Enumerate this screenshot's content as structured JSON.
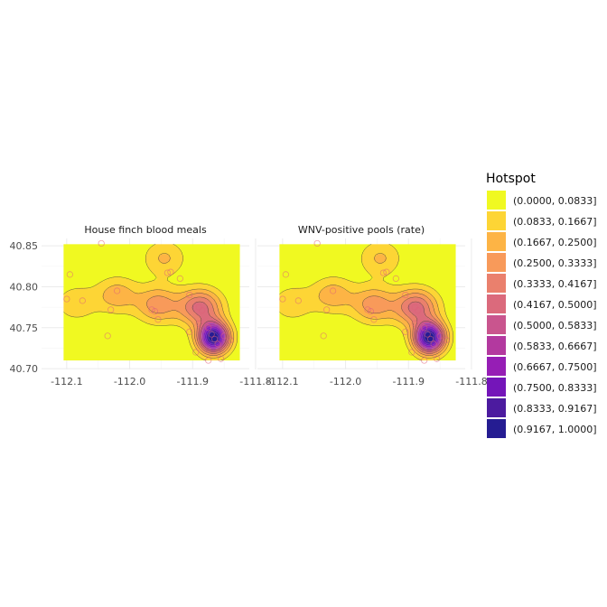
{
  "chart_data": {
    "type": "heatmap",
    "subtype": "faceted-density-contour-map",
    "facets": [
      {
        "title": "House finch blood meals"
      },
      {
        "title": "WNV-positive pools (rate)"
      }
    ],
    "x_ticks": [
      -112.1,
      -112.0,
      -111.9,
      -111.8
    ],
    "x_tick_labels": [
      "-112.1",
      "-112.0",
      "-111.9",
      "-111.8"
    ],
    "y_ticks": [
      40.7,
      40.75,
      40.8,
      40.85
    ],
    "y_tick_labels": [
      "40.70",
      "40.75",
      "40.80",
      "40.85"
    ],
    "xlim": [
      -112.14,
      -111.81
    ],
    "ylim": [
      40.699,
      40.859
    ],
    "tile_extent": {
      "x": [
        -112.105,
        -111.825
      ],
      "y": [
        40.71,
        40.852
      ]
    },
    "grid": true,
    "legend": {
      "title": "Hotspot",
      "position": "right",
      "bins": [
        {
          "label": "(0.0000, 0.0833]",
          "color": "#f0f921"
        },
        {
          "label": "(0.0833, 0.1667]",
          "color": "#fdd535"
        },
        {
          "label": "(0.1667, 0.2500]",
          "color": "#fdb445"
        },
        {
          "label": "(0.2500, 0.3333]",
          "color": "#f89a5a"
        },
        {
          "label": "(0.3333, 0.4167]",
          "color": "#ea806d"
        },
        {
          "label": "(0.4167, 0.5000]",
          "color": "#db6a7c"
        },
        {
          "label": "(0.5000, 0.5833]",
          "color": "#c9558e"
        },
        {
          "label": "(0.5833, 0.6667]",
          "color": "#b3399f"
        },
        {
          "label": "(0.6667, 0.7500]",
          "color": "#961eb5"
        },
        {
          "label": "(0.7500, 0.8333]",
          "color": "#7415b9"
        },
        {
          "label": "(0.8333, 0.9167]",
          "color": "#4c1b9f"
        },
        {
          "label": "(0.9167, 1.0000]",
          "color": "#251c92"
        }
      ]
    },
    "hotspot_model": {
      "peaks": [
        {
          "lon": -111.867,
          "lat": 40.738,
          "weight": 1.0
        },
        {
          "lon": -111.888,
          "lat": 40.775,
          "weight": 0.45
        },
        {
          "lon": -111.955,
          "lat": 40.778,
          "weight": 0.3
        },
        {
          "lon": -112.02,
          "lat": 40.79,
          "weight": 0.22
        },
        {
          "lon": -111.945,
          "lat": 40.835,
          "weight": 0.18
        },
        {
          "lon": -112.085,
          "lat": 40.78,
          "weight": 0.15
        }
      ]
    },
    "points": [
      {
        "lon": -112.045,
        "lat": 40.853
      },
      {
        "lon": -112.095,
        "lat": 40.815
      },
      {
        "lon": -112.1,
        "lat": 40.785
      },
      {
        "lon": -112.075,
        "lat": 40.783
      },
      {
        "lon": -112.02,
        "lat": 40.795
      },
      {
        "lon": -112.03,
        "lat": 40.772
      },
      {
        "lon": -111.965,
        "lat": 40.772
      },
      {
        "lon": -111.96,
        "lat": 40.77
      },
      {
        "lon": -111.955,
        "lat": 40.76
      },
      {
        "lon": -111.94,
        "lat": 40.817
      },
      {
        "lon": -111.935,
        "lat": 40.818
      },
      {
        "lon": -111.92,
        "lat": 40.81
      },
      {
        "lon": -111.905,
        "lat": 40.79
      },
      {
        "lon": -111.89,
        "lat": 40.775
      },
      {
        "lon": -111.885,
        "lat": 40.771
      },
      {
        "lon": -111.89,
        "lat": 40.755
      },
      {
        "lon": -111.905,
        "lat": 40.745
      },
      {
        "lon": -111.875,
        "lat": 40.75
      },
      {
        "lon": -111.87,
        "lat": 40.742
      },
      {
        "lon": -111.865,
        "lat": 40.736
      },
      {
        "lon": -111.86,
        "lat": 40.73
      },
      {
        "lon": -111.85,
        "lat": 40.74
      },
      {
        "lon": -111.84,
        "lat": 40.735
      },
      {
        "lon": -111.875,
        "lat": 40.71
      },
      {
        "lon": -111.855,
        "lat": 40.712
      },
      {
        "lon": -112.035,
        "lat": 40.74
      },
      {
        "lon": -111.895,
        "lat": 40.72
      }
    ]
  }
}
